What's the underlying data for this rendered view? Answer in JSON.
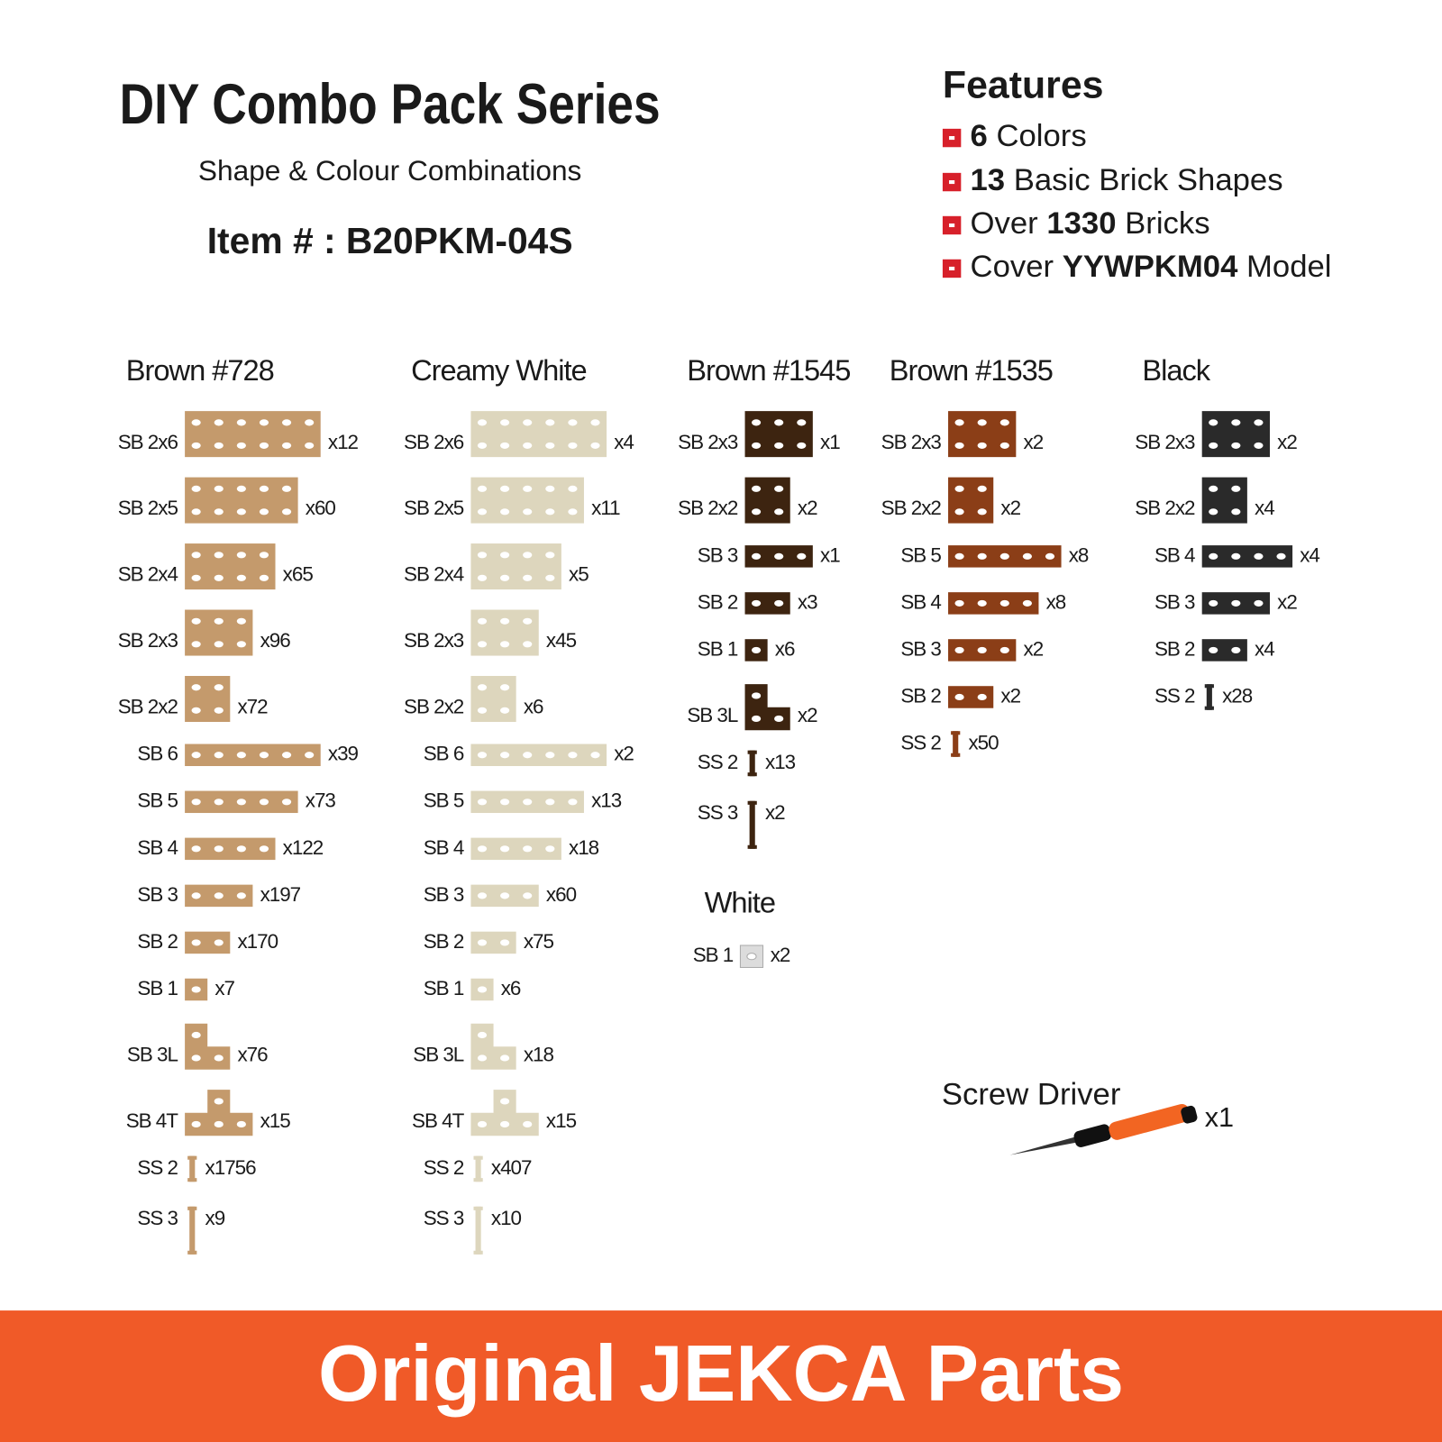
{
  "header": {
    "title": "DIY Combo Pack Series",
    "subtitle": "Shape & Colour Combinations",
    "item": "Item # : B20PKM-04S"
  },
  "features": {
    "title": "Features",
    "items": [
      [
        {
          "text": "6",
          "bold": true
        },
        {
          "text": " Colors",
          "bold": false
        }
      ],
      [
        {
          "text": "13",
          "bold": true
        },
        {
          "text": " Basic Brick Shapes",
          "bold": false
        }
      ],
      [
        {
          "text": "Over ",
          "bold": false
        },
        {
          "text": "1330",
          "bold": true
        },
        {
          "text": " Bricks",
          "bold": false
        }
      ],
      [
        {
          "text": "Cover ",
          "bold": false
        },
        {
          "text": "YYWPKM04",
          "bold": true
        },
        {
          "text": " Model",
          "bold": false
        }
      ]
    ]
  },
  "groups": [
    {
      "name": "Brown #728",
      "color": "#c49a6c",
      "parts": [
        {
          "label": "SB 2x6",
          "qty": "x12"
        },
        {
          "label": "SB 2x5",
          "qty": "x60"
        },
        {
          "label": "SB 2x4",
          "qty": "x65"
        },
        {
          "label": "SB 2x3",
          "qty": "x96"
        },
        {
          "label": "SB 2x2",
          "qty": "x72"
        },
        {
          "label": "SB 6",
          "qty": "x39"
        },
        {
          "label": "SB 5",
          "qty": "x73"
        },
        {
          "label": "SB 4",
          "qty": "x122"
        },
        {
          "label": "SB 3",
          "qty": "x197"
        },
        {
          "label": "SB 2",
          "qty": "x170"
        },
        {
          "label": "SB 1",
          "qty": "x7"
        },
        {
          "label": "SB 3L",
          "qty": "x76"
        },
        {
          "label": "SB 4T",
          "qty": "x15"
        },
        {
          "label": "SS 2",
          "qty": "x1756"
        },
        {
          "label": "SS 3",
          "qty": "x9"
        }
      ]
    },
    {
      "name": "Creamy White",
      "color": "#ddd6bd",
      "parts": [
        {
          "label": "SB 2x6",
          "qty": "x4"
        },
        {
          "label": "SB 2x5",
          "qty": "x11"
        },
        {
          "label": "SB 2x4",
          "qty": "x5"
        },
        {
          "label": "SB 2x3",
          "qty": "x45"
        },
        {
          "label": "SB 2x2",
          "qty": "x6"
        },
        {
          "label": "SB 6",
          "qty": "x2"
        },
        {
          "label": "SB 5",
          "qty": "x13"
        },
        {
          "label": "SB 4",
          "qty": "x18"
        },
        {
          "label": "SB 3",
          "qty": "x60"
        },
        {
          "label": "SB 2",
          "qty": "x75"
        },
        {
          "label": "SB 1",
          "qty": "x6"
        },
        {
          "label": "SB 3L",
          "qty": "x18"
        },
        {
          "label": "SB 4T",
          "qty": "x15"
        },
        {
          "label": "SS 2",
          "qty": "x407"
        },
        {
          "label": "SS 3",
          "qty": "x10"
        }
      ]
    },
    {
      "name": "Brown #1545",
      "color": "#3d2410",
      "parts": [
        {
          "label": "SB 2x3",
          "qty": "x1"
        },
        {
          "label": "SB 2x2",
          "qty": "x2"
        },
        {
          "label": "SB 3",
          "qty": "x1"
        },
        {
          "label": "SB 2",
          "qty": "x3"
        },
        {
          "label": "SB 1",
          "qty": "x6"
        },
        {
          "label": "SB 3L",
          "qty": "x2"
        },
        {
          "label": "SS 2",
          "qty": "x13"
        },
        {
          "label": "SS 3",
          "qty": "x2"
        }
      ]
    },
    {
      "name": "Brown #1535",
      "color": "#8b3e17",
      "parts": [
        {
          "label": "SB 2x3",
          "qty": "x2"
        },
        {
          "label": "SB 2x2",
          "qty": "x2"
        },
        {
          "label": "SB 5",
          "qty": "x8"
        },
        {
          "label": "SB 4",
          "qty": "x8"
        },
        {
          "label": "SB 3",
          "qty": "x2"
        },
        {
          "label": "SB 2",
          "qty": "x2"
        },
        {
          "label": "SS 2",
          "qty": "x50"
        }
      ]
    },
    {
      "name": "Black",
      "color": "#2a2a2a",
      "parts": [
        {
          "label": "SB 2x3",
          "qty": "x2"
        },
        {
          "label": "SB 2x2",
          "qty": "x4"
        },
        {
          "label": "SB 4",
          "qty": "x4"
        },
        {
          "label": "SB 3",
          "qty": "x2"
        },
        {
          "label": "SB 2",
          "qty": "x4"
        },
        {
          "label": "SS 2",
          "qty": "x28"
        }
      ]
    },
    {
      "name": "White",
      "color": "#dcdcdc",
      "parts": [
        {
          "label": "SB 1",
          "qty": "x2"
        }
      ]
    }
  ],
  "tool": {
    "name": "Screw Driver",
    "qty": "x1"
  },
  "footer": "Original JEKCA Parts"
}
